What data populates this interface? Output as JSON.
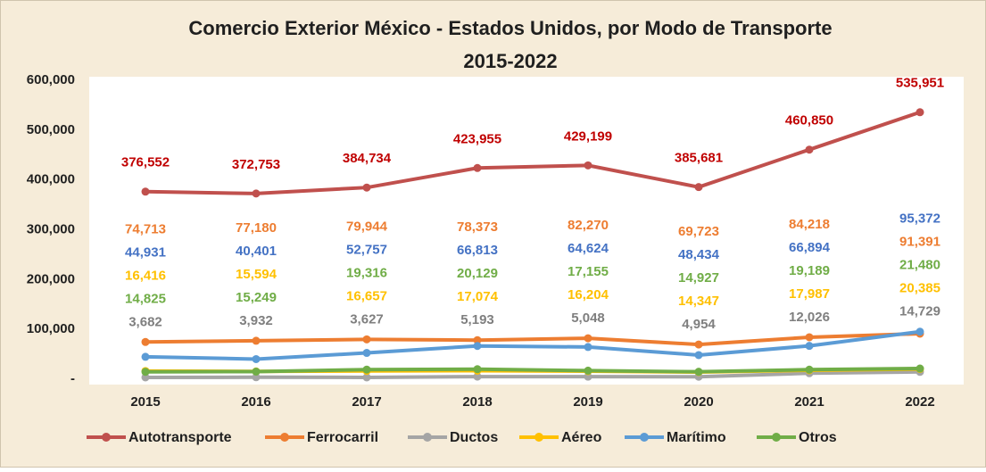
{
  "chart_data": {
    "type": "line",
    "title": "Comercio Exterior México - Estados Unidos, por Modo de Transporte",
    "subtitle": "2015-2022",
    "categories": [
      "2015",
      "2016",
      "2017",
      "2018",
      "2019",
      "2020",
      "2021",
      "2022"
    ],
    "ylim": [
      0,
      600000
    ],
    "yticks": [
      {
        "value": 0,
        "label": "-"
      },
      {
        "value": 100000,
        "label": "100,000"
      },
      {
        "value": 200000,
        "label": "200,000"
      },
      {
        "value": 300000,
        "label": "300,000"
      },
      {
        "value": 400000,
        "label": "400,000"
      },
      {
        "value": 500000,
        "label": "500,000"
      },
      {
        "value": 600000,
        "label": "600,000"
      }
    ],
    "grid": false,
    "legend": "bottom",
    "series": [
      {
        "name": "Autotransporte",
        "color": "#c0504d",
        "label_color": "#c00000",
        "values": [
          376552,
          372753,
          384734,
          423955,
          429199,
          385681,
          460850,
          535951
        ],
        "value_labels": [
          "376,552",
          "372,753",
          "384,734",
          "423,955",
          "429,199",
          "385,681",
          "460,850",
          "535,951"
        ]
      },
      {
        "name": "Ferrocarril",
        "color": "#ed7d31",
        "label_color": "#ed7d31",
        "values": [
          74713,
          77180,
          79944,
          78373,
          82270,
          69723,
          84218,
          91391
        ],
        "value_labels": [
          "74,713",
          "77,180",
          "79,944",
          "78,373",
          "82,270",
          "69,723",
          "84,218",
          "91,391"
        ]
      },
      {
        "name": "Ductos",
        "color": "#a5a5a5",
        "label_color": "#7f7f7f",
        "values": [
          3682,
          3932,
          3627,
          5193,
          5048,
          4954,
          12026,
          14729
        ],
        "value_labels": [
          "3,682",
          "3,932",
          "3,627",
          "5,193",
          "5,048",
          "4,954",
          "12,026",
          "14,729"
        ]
      },
      {
        "name": "Aéreo",
        "color": "#ffc000",
        "label_color": "#ffc000",
        "values": [
          16416,
          15594,
          16657,
          17074,
          16204,
          14347,
          17987,
          20385
        ],
        "value_labels": [
          "16,416",
          "15,594",
          "16,657",
          "17,074",
          "16,204",
          "14,347",
          "17,987",
          "20,385"
        ]
      },
      {
        "name": "Marítimo",
        "color": "#5b9bd5",
        "label_color": "#4472c4",
        "values": [
          44931,
          40401,
          52757,
          66813,
          64624,
          48434,
          66894,
          95372
        ],
        "value_labels": [
          "44,931",
          "40,401",
          "52,757",
          "66,813",
          "64,624",
          "48,434",
          "66,894",
          "95,372"
        ]
      },
      {
        "name": "Otros",
        "color": "#70ad47",
        "label_color": "#70ad47",
        "values": [
          14825,
          15249,
          19316,
          20129,
          17155,
          14927,
          19189,
          21480
        ],
        "value_labels": [
          "14,825",
          "15,249",
          "19,316",
          "20,129",
          "17,155",
          "14,927",
          "19,189",
          "21,480"
        ]
      }
    ]
  }
}
